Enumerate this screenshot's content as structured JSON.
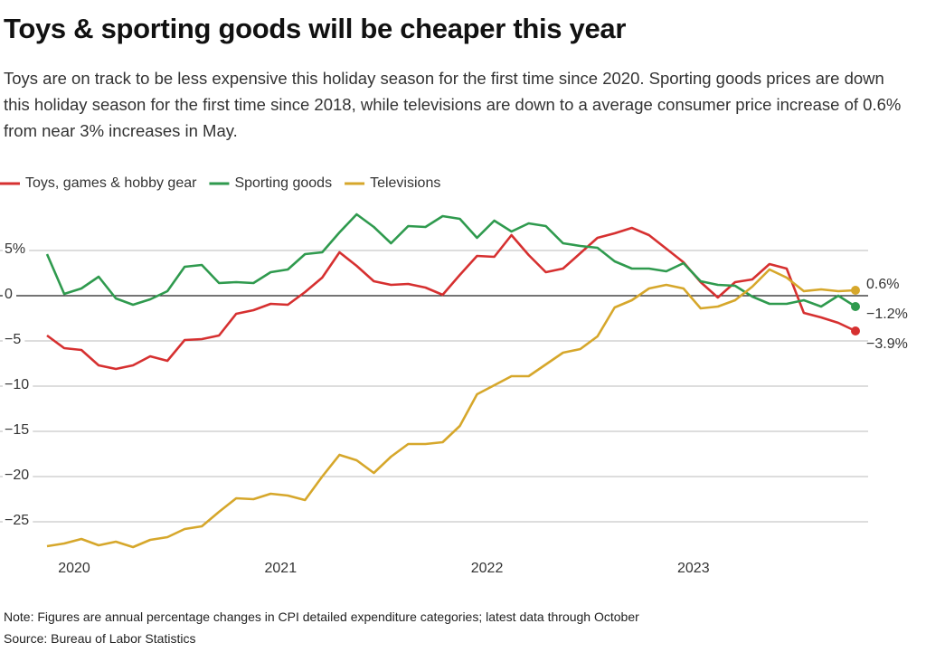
{
  "chart_data": {
    "type": "line",
    "title": "Toys & sporting goods will be cheaper this year",
    "subtitle": "Toys are on track to be less expensive this holiday season for the first time since 2020. Sporting goods prices are down this holiday season for the first time since 2018, while televisions are down to a average consumer price increase of 0.6% from near 3% increases in May.",
    "note": "Note: Figures are annual percentage changes in CPI detailed expenditure categories; latest data through October",
    "source": "Source: Bureau of Labor Statistics",
    "categories": [
      null,
      null,
      "2020",
      null,
      null,
      null,
      null,
      null,
      null,
      null,
      null,
      null,
      null,
      null,
      "2021",
      null,
      null,
      null,
      null,
      null,
      null,
      null,
      null,
      null,
      null,
      null,
      "2022",
      null,
      null,
      null,
      null,
      null,
      null,
      null,
      null,
      null,
      null,
      null,
      "2023",
      null,
      null,
      null,
      null,
      null,
      null,
      null,
      null,
      null
    ],
    "series": [
      {
        "name": "Toys, games & hobby gear",
        "color": "#d63030",
        "values": [
          -4.4,
          -5.8,
          -6.0,
          -7.7,
          -8.1,
          -7.7,
          -6.7,
          -7.2,
          -4.9,
          -4.8,
          -4.4,
          -2.0,
          -1.6,
          -0.9,
          -1.0,
          0.4,
          2.0,
          4.8,
          3.3,
          1.6,
          1.2,
          1.3,
          0.9,
          0.1,
          2.3,
          4.4,
          4.3,
          6.7,
          4.5,
          2.6,
          3.0,
          4.7,
          6.4,
          6.9,
          7.5,
          6.7,
          5.2,
          3.7,
          1.5,
          -0.2,
          1.5,
          1.8,
          3.5,
          3.0,
          -1.9,
          -2.4,
          -3.0,
          -3.9
        ],
        "value_labels": [
          null,
          null,
          null,
          null,
          null,
          null,
          null,
          null,
          null,
          null,
          null,
          null,
          null,
          null,
          null,
          null,
          null,
          null,
          null,
          null,
          null,
          null,
          null,
          null,
          null,
          null,
          null,
          null,
          null,
          null,
          null,
          null,
          null,
          null,
          null,
          null,
          null,
          null,
          null,
          null,
          null,
          null,
          null,
          null,
          null,
          null,
          null,
          "−3.9%"
        ]
      },
      {
        "name": "Sporting goods",
        "color": "#2f9a4e",
        "values": [
          4.6,
          0.2,
          0.8,
          2.1,
          -0.3,
          -1.0,
          -0.4,
          0.5,
          3.2,
          3.4,
          1.4,
          1.5,
          1.4,
          2.6,
          2.9,
          4.6,
          4.8,
          7.0,
          9.0,
          7.6,
          5.8,
          7.7,
          7.6,
          8.8,
          8.5,
          6.4,
          8.3,
          7.1,
          8.0,
          7.7,
          5.8,
          5.5,
          5.3,
          3.8,
          3.0,
          3.0,
          2.7,
          3.6,
          1.6,
          1.2,
          1.1,
          -0.1,
          -0.9,
          -0.9,
          -0.5,
          -1.2,
          0.0,
          -1.2
        ],
        "value_labels": [
          null,
          null,
          null,
          null,
          null,
          null,
          null,
          null,
          null,
          null,
          null,
          null,
          null,
          null,
          null,
          null,
          null,
          null,
          null,
          null,
          null,
          null,
          null,
          null,
          null,
          null,
          null,
          null,
          null,
          null,
          null,
          null,
          null,
          null,
          null,
          null,
          null,
          null,
          null,
          null,
          null,
          null,
          null,
          null,
          null,
          null,
          null,
          "−1.2%"
        ]
      },
      {
        "name": "Televisions",
        "color": "#d6a72b",
        "values": [
          -27.7,
          -27.4,
          -26.9,
          -27.6,
          -27.2,
          -27.8,
          -27.0,
          -26.7,
          -25.8,
          -25.5,
          -23.9,
          -22.4,
          -22.5,
          -21.9,
          -22.1,
          -22.6,
          -20.0,
          -17.6,
          -18.2,
          -19.6,
          -17.8,
          -16.4,
          -16.4,
          -16.2,
          -14.4,
          -10.9,
          -9.9,
          -8.9,
          -8.9,
          -7.6,
          -6.3,
          -5.9,
          -4.5,
          -1.3,
          -0.5,
          0.8,
          1.2,
          0.8,
          -1.4,
          -1.2,
          -0.5,
          1.0,
          2.9,
          2.0,
          0.5,
          0.7,
          0.5,
          0.6
        ],
        "value_labels": [
          null,
          null,
          null,
          null,
          null,
          null,
          null,
          null,
          null,
          null,
          null,
          null,
          null,
          null,
          null,
          null,
          null,
          null,
          null,
          null,
          null,
          null,
          null,
          null,
          null,
          null,
          null,
          null,
          null,
          null,
          null,
          null,
          null,
          null,
          null,
          null,
          null,
          null,
          null,
          null,
          null,
          null,
          null,
          null,
          null,
          null,
          null,
          "0.6%"
        ]
      }
    ],
    "ylim": [
      -29,
      10
    ],
    "yticks": [
      {
        "value": 5,
        "label": "5%"
      },
      0,
      {
        "value": -5,
        "label": "−5"
      },
      {
        "value": -10,
        "label": "−10"
      },
      {
        "value": -15,
        "label": "−15"
      },
      {
        "value": -20,
        "label": "−20"
      },
      {
        "value": -25,
        "label": "−25"
      }
    ],
    "grid": true
  }
}
